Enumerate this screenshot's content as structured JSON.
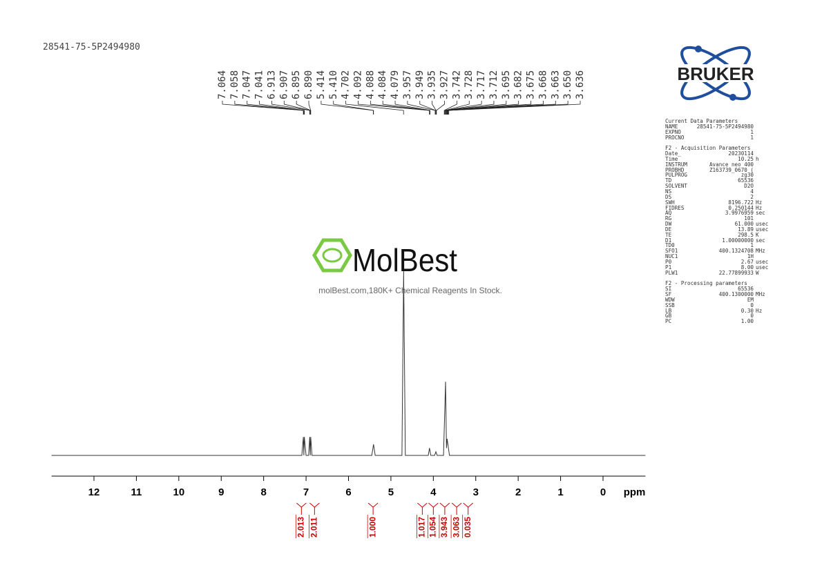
{
  "header": {
    "sample": "28541-75-5P2494980"
  },
  "watermark": {
    "brand": "MolBest",
    "tagline": "molBest.com,180K+ Chemical Reagents In Stock."
  },
  "logo": {
    "text": "BRUKER"
  },
  "chart_data": {
    "type": "nmr",
    "x_label": "ppm",
    "xlim": [
      13,
      -1
    ],
    "xticks": [
      12,
      11,
      10,
      9,
      8,
      7,
      6,
      5,
      4,
      3,
      2,
      1,
      0
    ],
    "ylim": [
      0,
      100
    ],
    "color": "#333333",
    "x": [
      13,
      7.1,
      7.064,
      7.052,
      7.041,
      7.0,
      6.94,
      6.913,
      6.9,
      6.89,
      6.86,
      5.45,
      5.41,
      5.37,
      4.74,
      4.7,
      4.66,
      4.12,
      4.09,
      4.06,
      3.97,
      3.94,
      3.91,
      3.76,
      3.712,
      3.69,
      3.675,
      3.62,
      -1
    ],
    "values": [
      0,
      0,
      10,
      0,
      10,
      0,
      0,
      10,
      0,
      10,
      0,
      0,
      6,
      0,
      0,
      100,
      0,
      0,
      4,
      0,
      0,
      2,
      0,
      0,
      40,
      4,
      9,
      0,
      0
    ],
    "peaks": {
      "values": [
        7.064,
        7.058,
        7.047,
        7.041,
        6.913,
        6.907,
        6.895,
        6.89,
        5.414,
        5.41,
        4.702,
        4.092,
        4.088,
        4.084,
        4.079,
        3.957,
        3.949,
        3.935,
        3.927,
        3.742,
        3.728,
        3.717,
        3.712,
        3.695,
        3.682,
        3.675,
        3.668,
        3.663,
        3.65,
        3.636
      ],
      "value_labels": [
        "7.064",
        "7.058",
        "7.047",
        "7.041",
        "6.913",
        "6.907",
        "6.895",
        "6.890",
        "5.414",
        "5.410",
        "4.702",
        "4.092",
        "4.088",
        "4.084",
        "4.079",
        "3.957",
        "3.949",
        "3.935",
        "3.927",
        "3.742",
        "3.728",
        "3.717",
        "3.712",
        "3.695",
        "3.682",
        "3.675",
        "3.668",
        "3.663",
        "3.650",
        "3.636"
      ]
    },
    "integrals": {
      "x": [
        7.11,
        6.8,
        5.42,
        4.26,
        4.0,
        3.73,
        3.45,
        3.18
      ],
      "values": [
        2.013,
        2.011,
        1.0,
        1.017,
        1.054,
        3.943,
        3.063,
        0.035
      ],
      "value_labels": [
        "2.013",
        "2.011",
        "1.000",
        "1.017",
        "1.054",
        "3.943",
        "3.063",
        "0.035"
      ],
      "color": "#cc0000"
    }
  },
  "parameters": [
    [
      "Current Data Parameters"
    ],
    [
      "NAME",
      "28541-75-5P2494980",
      ""
    ],
    [
      "EXPNO",
      "1",
      ""
    ],
    [
      "PROCNO",
      "1",
      ""
    ],
    [],
    [
      "F2 - Acquisition Parameters"
    ],
    [
      "Date_",
      "20230114",
      ""
    ],
    [
      "Time",
      "10.25",
      "h"
    ],
    [
      "INSTRUM",
      "Avance neo 400",
      ""
    ],
    [
      "PROBHD",
      "Z163739_0670 (",
      ""
    ],
    [
      "PULPROG",
      "zg30",
      ""
    ],
    [
      "TD",
      "65536",
      ""
    ],
    [
      "SOLVENT",
      "D2O",
      ""
    ],
    [
      "NS",
      "4",
      ""
    ],
    [
      "DS",
      "2",
      ""
    ],
    [
      "SWH",
      "8196.722",
      "Hz"
    ],
    [
      "FIDRES",
      "0.250144",
      "Hz"
    ],
    [
      "AQ",
      "3.9976959",
      "sec"
    ],
    [
      "RG",
      "101",
      ""
    ],
    [
      "DW",
      "61.000",
      "usec"
    ],
    [
      "DE",
      "13.89",
      "usec"
    ],
    [
      "TE",
      "298.5",
      "K"
    ],
    [
      "D1",
      "1.00000000",
      "sec"
    ],
    [
      "TD0",
      "1",
      ""
    ],
    [
      "SFO1",
      "400.1324708",
      "MHz"
    ],
    [
      "NUC1",
      "1H",
      ""
    ],
    [
      "P0",
      "2.67",
      "usec"
    ],
    [
      "P1",
      "8.00",
      "usec"
    ],
    [
      "PLW1",
      "22.77899933",
      "W"
    ],
    [],
    [
      "F2 - Processing parameters"
    ],
    [
      "SI",
      "65536",
      ""
    ],
    [
      "SF",
      "400.1300000",
      "MHz"
    ],
    [
      "WDW",
      "EM",
      ""
    ],
    [
      "SSB",
      "0",
      ""
    ],
    [
      "LB",
      "0.30",
      "Hz"
    ],
    [
      "GB",
      "0",
      ""
    ],
    [
      "PC",
      "1.00",
      ""
    ]
  ]
}
